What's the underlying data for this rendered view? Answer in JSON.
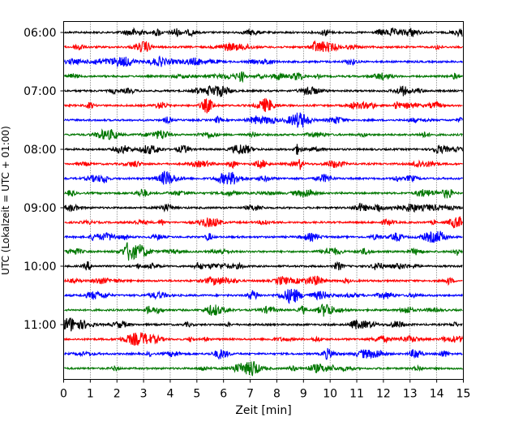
{
  "chart_data": {
    "type": "line",
    "title": "",
    "xlabel": "Zeit  [min]",
    "ylabel": "UTC (Lokalzeit = UTC + 01:00)",
    "xlim": [
      0,
      15
    ],
    "x_ticks": [
      0,
      1,
      2,
      3,
      4,
      5,
      6,
      7,
      8,
      9,
      10,
      11,
      12,
      13,
      14,
      15
    ],
    "x_tick_labels": [
      "0",
      "1",
      "2",
      "3",
      "4",
      "5",
      "6",
      "7",
      "8",
      "9",
      "10",
      "11",
      "12",
      "13",
      "14",
      "15"
    ],
    "y_tick_labels": [
      "06:00",
      "07:00",
      "08:00",
      "09:00",
      "10:00",
      "11:00"
    ],
    "grid": "vertical dotted",
    "colors": [
      "#000000",
      "#ff0000",
      "#0000ff",
      "#007700"
    ],
    "trace_start_times": [
      "06:00",
      "06:15",
      "06:30",
      "06:45",
      "07:00",
      "07:15",
      "07:30",
      "07:45",
      "08:00",
      "08:15",
      "08:30",
      "08:45",
      "09:00",
      "09:15",
      "09:30",
      "09:45",
      "10:00",
      "10:15",
      "10:30",
      "10:45",
      "11:00",
      "11:15",
      "11:30",
      "11:45"
    ],
    "trace_duration_min": 15
  }
}
